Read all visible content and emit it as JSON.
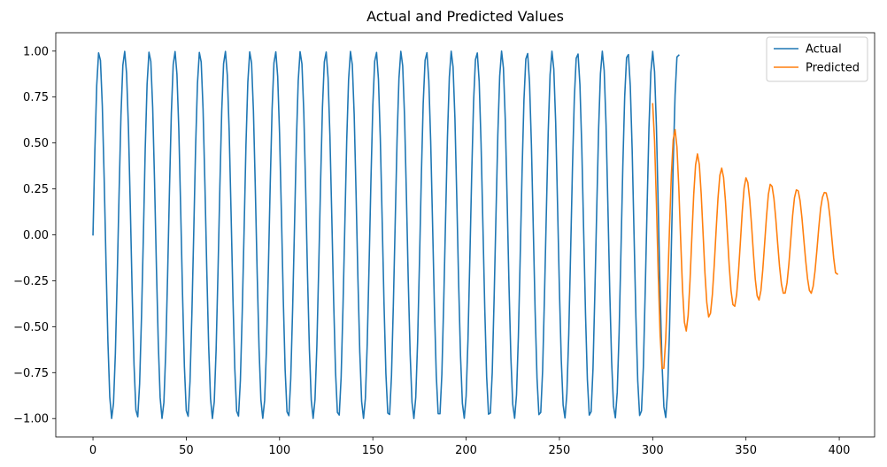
{
  "chart_data": {
    "type": "line",
    "title": "Actual and Predicted Values",
    "xlabel": "",
    "ylabel": "",
    "xlim": [
      -19.95,
      418.95
    ],
    "ylim": [
      -1.1,
      1.1
    ],
    "xticks": [
      0,
      50,
      100,
      150,
      200,
      250,
      300,
      350,
      400
    ],
    "xtick_labels": [
      "0",
      "50",
      "100",
      "150",
      "200",
      "250",
      "300",
      "350",
      "400"
    ],
    "yticks": [
      -1.0,
      -0.75,
      -0.5,
      -0.25,
      0.0,
      0.25,
      0.5,
      0.75,
      1.0
    ],
    "ytick_labels": [
      "−1.00",
      "−0.75",
      "−0.50",
      "−0.25",
      "0.00",
      "0.25",
      "0.50",
      "0.75",
      "1.00"
    ],
    "grid": false,
    "legend_position": "top-right",
    "series": [
      {
        "name": "Actual",
        "color": "#1f77b4",
        "x_start": 0,
        "x_step": 1,
        "values": [
          0.0,
          0.4573,
          0.8136,
          0.9901,
          0.9492,
          0.7017,
          0.3038,
          -0.1596,
          -0.5807,
          -0.8829,
          -0.9995,
          -0.9171,
          -0.6453,
          -0.2272,
          0.2332,
          0.6515,
          0.9228,
          0.9984,
          0.8792,
          0.5852,
          0.1543,
          -0.3109,
          -0.7075,
          -0.9537,
          -0.9906,
          -0.8101,
          -0.4477,
          -0.0106,
          0.4684,
          0.8197,
          0.9939,
          0.9435,
          0.6919,
          0.2889,
          -0.1753,
          -0.5916,
          -0.8861,
          -0.9993,
          -0.9127,
          -0.6358,
          -0.2169,
          0.2448,
          0.6623,
          0.9271,
          0.9975,
          0.8749,
          0.5741,
          0.1404,
          -0.3237,
          -0.7171,
          -0.9569,
          -0.9877,
          -0.7998,
          -0.4323,
          0.0106,
          0.4777,
          0.8237,
          0.9926,
          0.9405,
          0.684,
          0.2697,
          -0.1918,
          -0.6023,
          -0.8909,
          -0.9999,
          -0.9082,
          -0.626,
          -0.204,
          0.2604,
          0.6727,
          0.9314,
          0.9981,
          0.8689,
          0.5626,
          0.1263,
          -0.3367,
          -0.7265,
          -0.9594,
          -0.9868,
          -0.793,
          -0.4192,
          0.0269,
          0.4886,
          0.8308,
          0.9956,
          0.9349,
          0.6747,
          0.258,
          -0.2069,
          -0.6149,
          -0.8972,
          -0.9988,
          -0.9012,
          -0.6143,
          -0.1875,
          0.2744,
          0.6836,
          0.936,
          0.9958,
          0.8612,
          0.5505,
          0.1124,
          -0.3493,
          -0.7361,
          -0.9633,
          -0.9841,
          -0.7843,
          -0.4064,
          0.0421,
          0.4999,
          0.8373,
          0.997,
          0.9302,
          0.6649,
          0.244,
          -0.2221,
          -0.6258,
          -0.9009,
          -0.9993,
          -0.8966,
          -0.6039,
          -0.1742,
          0.2889,
          0.6943,
          0.941,
          0.9948,
          0.8549,
          0.5384,
          0.0973,
          -0.3623,
          -0.7453,
          -0.9659,
          -0.9808,
          -0.7762,
          -0.392,
          0.0571,
          0.5114,
          0.8444,
          0.9979,
          0.9254,
          0.6554,
          0.2287,
          -0.2372,
          -0.6372,
          -0.907,
          -0.9994,
          -0.8904,
          -0.5929,
          -0.1586,
          0.304,
          0.7048,
          0.9449,
          0.9929,
          0.8472,
          0.5262,
          0.0816,
          -0.3766,
          -0.7546,
          -0.9701,
          -0.9776,
          -0.7672,
          -0.3773,
          0.0741,
          0.5233,
          0.8514,
          0.9985,
          0.9198,
          0.6439,
          0.213,
          -0.2527,
          -0.6483,
          -0.9121,
          -0.9998,
          -0.8848,
          -0.5813,
          -0.144,
          0.3189,
          0.7148,
          0.9496,
          0.9912,
          0.8405,
          0.5131,
          0.066,
          -0.3903,
          -0.7628,
          -0.9731,
          -0.9737,
          -0.7585,
          -0.3631,
          0.0893,
          0.5351,
          0.8582,
          0.9994,
          0.9137,
          0.6336,
          0.1983,
          -0.267,
          -0.6585,
          -0.9169,
          -0.9987,
          -0.8775,
          -0.5701,
          -0.1293,
          0.3325,
          0.7244,
          0.9535,
          0.9898,
          0.833,
          0.5008,
          0.0513,
          -0.4039,
          -0.7716,
          -0.9757,
          -0.9698,
          -0.7495,
          -0.3475,
          0.1041,
          0.5471,
          0.8644,
          0.9996,
          0.9076,
          0.6229,
          0.1832,
          -0.2826,
          -0.6694,
          -0.9227,
          -0.9985,
          -0.871,
          -0.558,
          -0.1151,
          0.3469,
          0.7341,
          0.9569,
          0.9867,
          0.8252,
          0.4888,
          0.0355,
          -0.4181,
          -0.7801,
          -0.9783,
          -0.9664,
          -0.7399,
          -0.3336,
          0.1198,
          0.5586,
          0.8716,
          0.9994,
          0.9014,
          0.6117,
          0.1675,
          -0.2971,
          -0.6795,
          -0.927,
          -0.9971,
          -0.8637,
          -0.5464,
          -0.0991,
          0.3617,
          0.743,
          0.961,
          0.984,
          0.8171,
          0.4753,
          0.0207,
          -0.4315,
          -0.7882,
          -0.9813,
          -0.9625,
          -0.7301,
          -0.3184,
          0.1349,
          0.5699,
          0.8771,
          0.9991,
          0.8947,
          0.6002,
          0.1527,
          -0.312,
          -0.6898,
          -0.9313,
          -0.9962,
          -0.8567,
          -0.5341,
          -0.085,
          0.3756,
          0.7522,
          0.9645,
          0.9812,
          0.8088,
          0.463,
          0.0051,
          -0.4451,
          -0.7964,
          -0.9829,
          -0.9586,
          -0.7207,
          -0.3042,
          0.1505,
          0.5811,
          0.8833,
          0.9986,
          0.8878,
          0.5894,
          0.1366,
          -0.3266,
          -0.6991,
          -0.9362,
          -0.9944,
          -0.8491,
          -0.5224,
          -0.0691,
          0.3898,
          0.7615,
          0.9677,
          0.978
        ]
      },
      {
        "name": "Predicted",
        "color": "#ff7f0e",
        "x_start": 300,
        "x_step": 1,
        "values": [
          0.7131,
          0.5103,
          0.1736,
          -0.2203,
          -0.5496,
          -0.7273,
          -0.7258,
          -0.5646,
          -0.2906,
          0.0318,
          0.3258,
          0.5177,
          0.5728,
          0.4782,
          0.258,
          -0.0286,
          -0.2969,
          -0.4753,
          -0.5234,
          -0.4394,
          -0.2508,
          -0.0098,
          0.2199,
          0.3807,
          0.4406,
          0.3823,
          0.2237,
          0.0095,
          -0.2063,
          -0.3689,
          -0.4473,
          -0.4262,
          -0.3243,
          -0.1633,
          0.0232,
          0.1985,
          0.3237,
          0.3629,
          0.3124,
          0.1853,
          0.0127,
          -0.1657,
          -0.3046,
          -0.38,
          -0.3887,
          -0.3251,
          -0.2012,
          -0.0408,
          0.1256,
          0.2549,
          0.3105,
          0.2847,
          0.1909,
          0.0516,
          -0.1033,
          -0.2422,
          -0.3321,
          -0.3548,
          -0.3039,
          -0.1912,
          -0.0477,
          0.0986,
          0.2195,
          0.2749,
          0.2636,
          0.1968,
          0.0851,
          -0.0481,
          -0.1725,
          -0.2673,
          -0.3176,
          -0.3171,
          -0.2624,
          -0.1599,
          -0.0291,
          0.1041,
          0.2018,
          0.2448,
          0.2391,
          0.1862,
          0.0931,
          -0.0248,
          -0.14,
          -0.2375,
          -0.3026,
          -0.318,
          -0.2806,
          -0.1982,
          -0.0863,
          0.036,
          0.1425,
          0.2044,
          0.2304,
          0.2277,
          0.1829,
          0.0976,
          -0.0145,
          -0.125,
          -0.2061,
          -0.2137
        ]
      }
    ]
  }
}
